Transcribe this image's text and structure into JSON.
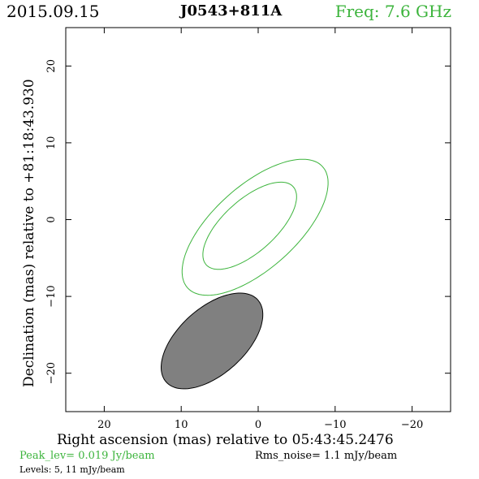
{
  "header": {
    "date": "2015.09.15",
    "source": "J0543+811A",
    "freq": "Freq: 7.6 GHz"
  },
  "footer": {
    "peak": "Peak_lev=  0.019 Jy/beam",
    "rms": "Rms_noise=  1.1 mJy/beam",
    "levels": "Levels:  5,  11 mJy/beam"
  },
  "colors": {
    "contour": "#3cb43c",
    "beam_fill": "#808080",
    "axes": "#000000"
  },
  "chart_data": {
    "type": "contour",
    "xlabel": "Right ascension (mas) relative to 05:43:45.2476",
    "ylabel": "Declination (mas) relative to +81:18:43.930",
    "xlim": [
      25,
      -25
    ],
    "ylim": [
      -25,
      25
    ],
    "xticks": [
      20,
      10,
      0,
      -10,
      -20
    ],
    "xtick_labels": [
      "20",
      "10",
      "0",
      "−10",
      "−20"
    ],
    "yticks": [
      20,
      10,
      0,
      -10,
      -20
    ],
    "ytick_labels": [
      "20",
      "10",
      "0",
      "−10",
      "−20"
    ],
    "contours": [
      {
        "level_mjy": 5,
        "center": [
          0.4,
          -1.0
        ],
        "major_mas": 11.8,
        "minor_mas": 5.4,
        "pa_deg": 48
      },
      {
        "level_mjy": 11,
        "center": [
          1.1,
          -0.8
        ],
        "major_mas": 7.6,
        "minor_mas": 3.4,
        "pa_deg": 48
      }
    ],
    "beam": {
      "center": [
        6.0,
        -15.8
      ],
      "major_mas": 8.0,
      "minor_mas": 4.3,
      "pa_deg": 48
    }
  }
}
